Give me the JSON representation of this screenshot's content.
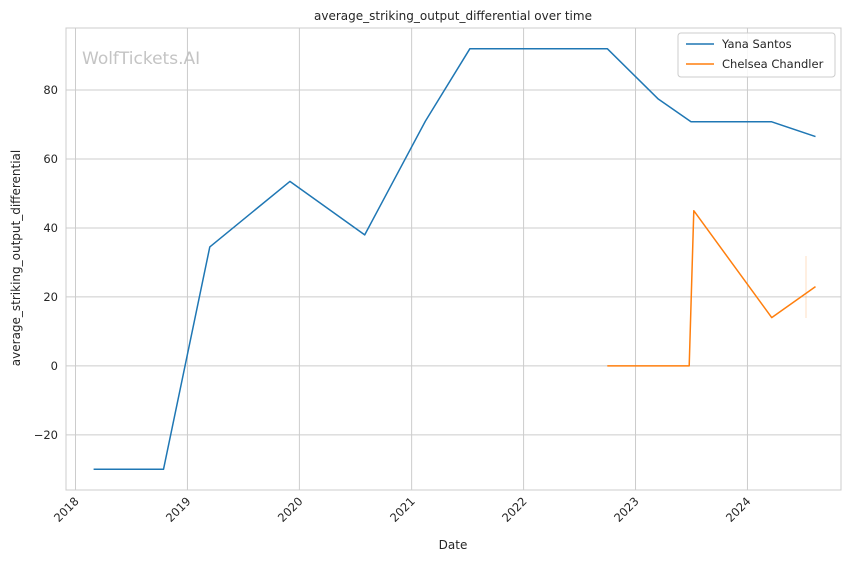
{
  "chart_data": {
    "type": "line",
    "title": "average_striking_output_differential over time",
    "xlabel": "Date",
    "ylabel": "average_striking_output_differential",
    "x_axis_type": "date",
    "xlim": [
      "2017-12-01",
      "2024-11-01"
    ],
    "ylim": [
      -36,
      98
    ],
    "x_ticks": [
      "2018",
      "2019",
      "2020",
      "2021",
      "2022",
      "2023",
      "2024"
    ],
    "y_ticks": [
      -20,
      0,
      20,
      40,
      60,
      80
    ],
    "grid": true,
    "legend_position": "top-right",
    "watermark": "WolfTickets.AI",
    "series": [
      {
        "name": "Yana Santos",
        "color": "#1f77b4",
        "points": [
          {
            "x": "2018-03-01",
            "y": -30
          },
          {
            "x": "2018-10-15",
            "y": -30
          },
          {
            "x": "2019-03-15",
            "y": 34.5
          },
          {
            "x": "2019-12-01",
            "y": 53.5
          },
          {
            "x": "2020-08-01",
            "y": 38
          },
          {
            "x": "2021-02-15",
            "y": 71
          },
          {
            "x": "2021-07-10",
            "y": 92
          },
          {
            "x": "2022-10-01",
            "y": 92
          },
          {
            "x": "2023-03-15",
            "y": 77.5
          },
          {
            "x": "2023-07-01",
            "y": 70.8
          },
          {
            "x": "2024-03-20",
            "y": 70.8
          },
          {
            "x": "2024-08-10",
            "y": 66.5
          }
        ]
      },
      {
        "name": "Chelsea Chandler",
        "color": "#ff7f0e",
        "points": [
          {
            "x": "2022-10-01",
            "y": 0
          },
          {
            "x": "2023-06-25",
            "y": 0
          },
          {
            "x": "2023-07-10",
            "y": 45
          },
          {
            "x": "2024-03-20",
            "y": 14
          },
          {
            "x": "2024-08-10",
            "y": 23
          }
        ]
      }
    ]
  }
}
